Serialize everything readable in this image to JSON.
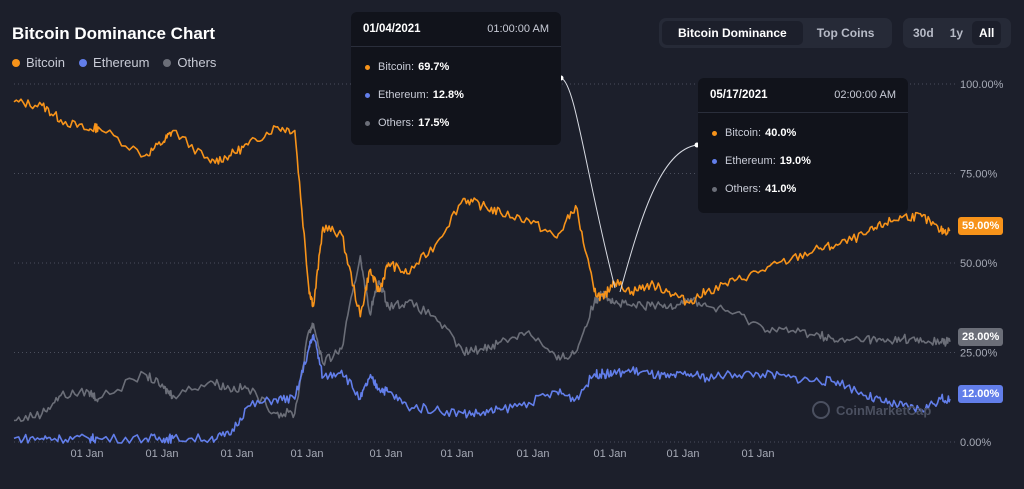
{
  "title": "Bitcoin Dominance Chart",
  "toggle": {
    "options": [
      "Bitcoin Dominance",
      "Top Coins"
    ],
    "selected": "Bitcoin Dominance"
  },
  "ranges": {
    "options": [
      "30d",
      "1y",
      "All"
    ],
    "selected": "All"
  },
  "colors": {
    "bitcoin": "#f7931a",
    "ethereum": "#627eea",
    "others": "#6b6e78",
    "background": "#1c1f2b"
  },
  "watermark": "CoinMarketCap",
  "tooltips": [
    {
      "date": "01/04/2021",
      "time": "01:00:00 AM",
      "rows": [
        {
          "label": "Bitcoin:",
          "value": "69.7%"
        },
        {
          "label": "Ethereum:",
          "value": "12.8%"
        },
        {
          "label": "Others:",
          "value": "17.5%"
        }
      ]
    },
    {
      "date": "05/17/2021",
      "time": "02:00:00 AM",
      "rows": [
        {
          "label": "Bitcoin:",
          "value": "40.0%"
        },
        {
          "label": "Ethereum:",
          "value": "19.0%"
        },
        {
          "label": "Others:",
          "value": "41.0%"
        }
      ]
    }
  ],
  "badges": {
    "bitcoin": "59.00%",
    "others": "28.00%",
    "ethereum": "12.00%"
  },
  "chart_data": {
    "type": "line",
    "title": "Bitcoin Dominance Chart",
    "ylim": [
      0,
      100
    ],
    "yticks": [
      "0.00%",
      "25.00%",
      "50.00%",
      "75.00%",
      "100.00%"
    ],
    "xticks": [
      "01 Jan",
      "01 Jan",
      "01 Jan",
      "01 Jan",
      "01 Jan",
      "01 Jan",
      "01 Jan",
      "01 Jan",
      "01 Jan",
      "01 Jan"
    ],
    "legend_position": "top-left",
    "grid": "horizontal-dotted",
    "x": [
      0,
      0.03,
      0.05,
      0.08,
      0.09,
      0.14,
      0.16,
      0.17,
      0.21,
      0.23,
      0.25,
      0.28,
      0.3,
      0.315,
      0.32,
      0.33,
      0.35,
      0.37,
      0.38,
      0.39,
      0.4,
      0.42,
      0.45,
      0.48,
      0.5,
      0.52,
      0.55,
      0.58,
      0.6,
      0.62,
      0.63,
      0.64,
      0.66,
      0.68,
      0.7,
      0.72,
      0.74,
      0.77,
      0.8,
      0.83,
      0.86,
      0.88,
      0.91,
      0.93,
      0.95,
      0.97,
      0.99,
      1.0
    ],
    "series": [
      {
        "name": "Bitcoin",
        "values": [
          95,
          94,
          90,
          87,
          88,
          80,
          84,
          87,
          78,
          80,
          83,
          88,
          87,
          43,
          38,
          60,
          58,
          35,
          48,
          42,
          50,
          47,
          55,
          68,
          66,
          64,
          62,
          57,
          66,
          42,
          40,
          45,
          42,
          44,
          42,
          39,
          42,
          45,
          48,
          51,
          54,
          55,
          58,
          61,
          63,
          63,
          59,
          59
        ]
      },
      {
        "name": "Ethereum",
        "values": [
          1,
          1,
          1,
          1,
          1,
          1,
          1,
          1,
          1,
          2,
          10,
          12,
          12,
          26,
          30,
          18,
          20,
          12,
          18,
          15,
          14,
          10,
          9,
          8,
          8,
          9,
          11,
          14,
          12,
          19,
          19,
          19,
          20,
          19,
          18,
          19,
          18,
          19,
          19,
          18,
          17,
          17,
          13,
          11,
          10,
          9,
          12,
          12
        ]
      },
      {
        "name": "Others",
        "values": [
          6,
          8,
          13,
          14,
          12,
          19,
          15,
          13,
          17,
          15,
          15,
          8,
          8,
          31,
          33,
          22,
          26,
          52,
          36,
          45,
          38,
          39,
          35,
          25,
          26,
          28,
          31,
          23,
          25,
          39,
          42,
          39,
          38,
          38,
          38,
          40,
          38,
          36,
          32,
          31,
          30,
          28,
          29,
          28,
          29,
          28,
          28,
          28
        ]
      }
    ]
  }
}
